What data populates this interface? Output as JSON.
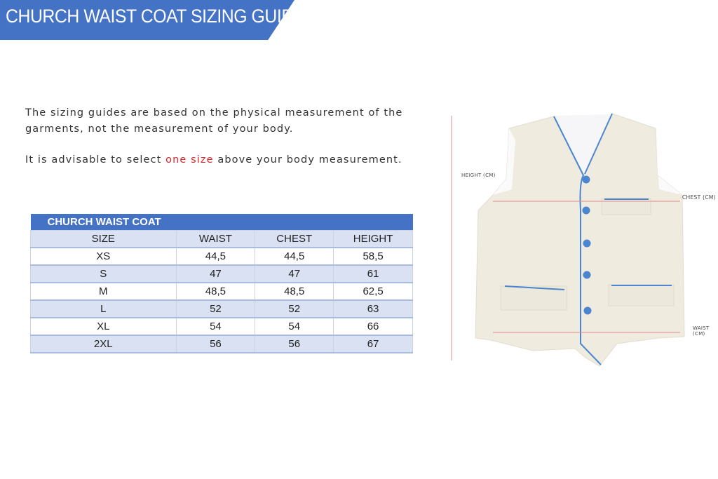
{
  "banner": {
    "title": "CHURCH WAIST COAT SIZING GUIDE",
    "color": "#4472c4"
  },
  "intro": {
    "line1": "The sizing guides are based on the physical measurement of the garments, not the measurement of your body.",
    "line2_pre": "It is advisable to select ",
    "line2_highlight": "one size",
    "line2_post": " above your body measurement.",
    "highlight_color": "#d9262b"
  },
  "table": {
    "title": "CHURCH WAIST COAT",
    "headers": [
      "SIZE",
      "WAIST",
      "CHEST",
      "HEIGHT"
    ],
    "rows": [
      [
        "XS",
        "44,5",
        "44,5",
        "58,5"
      ],
      [
        "S",
        "47",
        "47",
        "61"
      ],
      [
        "M",
        "48,5",
        "48,5",
        "62,5"
      ],
      [
        "L",
        "52",
        "52",
        "63"
      ],
      [
        "XL",
        "54",
        "54",
        "66"
      ],
      [
        "2XL",
        "56",
        "56",
        "67"
      ]
    ]
  },
  "diagram": {
    "height_label": "HEIGHT (CM)",
    "chest_label": "CHEST (CM)",
    "waist_label": "WAIST (CM)",
    "button_color": "#4a86d0",
    "fabric_color": "#efebdf"
  }
}
